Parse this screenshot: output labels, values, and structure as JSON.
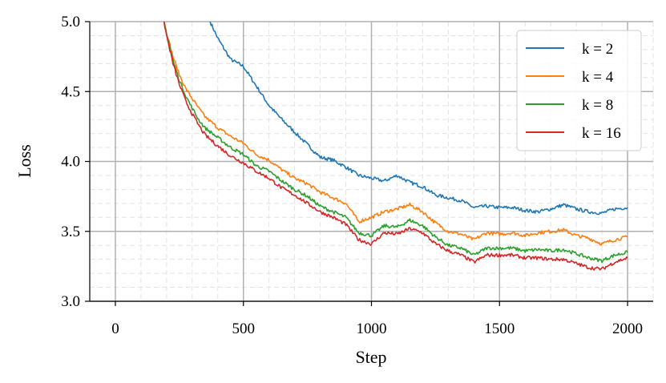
{
  "chart_data": {
    "type": "line",
    "title": "",
    "xlabel": "Step",
    "ylabel": "Loss",
    "xlim": [
      -100,
      2100
    ],
    "ylim": [
      3.0,
      5.0
    ],
    "xticks": [
      0,
      500,
      1000,
      1500,
      2000
    ],
    "yticks": [
      3.0,
      3.5,
      4.0,
      4.5,
      5.0
    ],
    "xtick_labels": [
      "0",
      "500",
      "1000",
      "1500",
      "2000"
    ],
    "ytick_labels": [
      "3.0",
      "3.5",
      "4.0",
      "4.5",
      "5.0"
    ],
    "grid": "major and minor",
    "legend_position": "top-right",
    "series": [
      {
        "name": "k = 2",
        "color": "#1f77b4",
        "x": [
          370,
          400,
          450,
          500,
          550,
          600,
          650,
          700,
          750,
          800,
          850,
          900,
          950,
          1000,
          1050,
          1100,
          1150,
          1200,
          1250,
          1300,
          1350,
          1400,
          1450,
          1500,
          1550,
          1600,
          1650,
          1700,
          1750,
          1800,
          1850,
          1900,
          1950,
          2000
        ],
        "y": [
          5.0,
          4.88,
          4.73,
          4.68,
          4.54,
          4.4,
          4.3,
          4.21,
          4.12,
          4.03,
          4.01,
          3.96,
          3.9,
          3.88,
          3.86,
          3.9,
          3.85,
          3.82,
          3.76,
          3.74,
          3.72,
          3.67,
          3.68,
          3.67,
          3.67,
          3.65,
          3.64,
          3.66,
          3.69,
          3.66,
          3.64,
          3.63,
          3.66,
          3.67
        ]
      },
      {
        "name": "k = 4",
        "color": "#ff7f0e",
        "x": [
          190,
          200,
          225,
          250,
          275,
          300,
          325,
          350,
          400,
          450,
          500,
          550,
          600,
          650,
          700,
          750,
          800,
          850,
          900,
          950,
          1000,
          1050,
          1100,
          1150,
          1200,
          1250,
          1300,
          1350,
          1400,
          1450,
          1500,
          1550,
          1600,
          1650,
          1700,
          1750,
          1800,
          1850,
          1900,
          1950,
          2000
        ],
        "y": [
          5.0,
          4.92,
          4.75,
          4.62,
          4.52,
          4.45,
          4.38,
          4.32,
          4.24,
          4.18,
          4.13,
          4.05,
          4.01,
          3.94,
          3.88,
          3.84,
          3.78,
          3.74,
          3.7,
          3.57,
          3.6,
          3.64,
          3.66,
          3.69,
          3.64,
          3.56,
          3.5,
          3.48,
          3.44,
          3.49,
          3.48,
          3.49,
          3.47,
          3.49,
          3.5,
          3.51,
          3.47,
          3.45,
          3.41,
          3.44,
          3.46
        ]
      },
      {
        "name": "k = 8",
        "color": "#2ca02c",
        "x": [
          190,
          200,
          225,
          250,
          275,
          300,
          325,
          350,
          400,
          450,
          500,
          550,
          600,
          650,
          700,
          750,
          800,
          850,
          900,
          950,
          1000,
          1050,
          1100,
          1150,
          1200,
          1250,
          1300,
          1350,
          1400,
          1450,
          1500,
          1550,
          1600,
          1650,
          1700,
          1750,
          1800,
          1850,
          1900,
          1950,
          2000
        ],
        "y": [
          5.0,
          4.92,
          4.72,
          4.58,
          4.47,
          4.38,
          4.3,
          4.24,
          4.17,
          4.1,
          4.05,
          3.97,
          3.93,
          3.86,
          3.8,
          3.75,
          3.68,
          3.64,
          3.6,
          3.49,
          3.47,
          3.54,
          3.53,
          3.58,
          3.54,
          3.46,
          3.4,
          3.38,
          3.33,
          3.38,
          3.38,
          3.38,
          3.36,
          3.37,
          3.36,
          3.37,
          3.34,
          3.31,
          3.29,
          3.33,
          3.35
        ]
      },
      {
        "name": "k = 16",
        "color": "#d62728",
        "x": [
          190,
          200,
          225,
          250,
          275,
          300,
          325,
          350,
          400,
          450,
          500,
          550,
          600,
          650,
          700,
          750,
          800,
          850,
          900,
          950,
          1000,
          1050,
          1100,
          1150,
          1200,
          1250,
          1300,
          1350,
          1400,
          1450,
          1500,
          1550,
          1600,
          1650,
          1700,
          1750,
          1800,
          1850,
          1900,
          1950,
          2000
        ],
        "y": [
          5.0,
          4.9,
          4.7,
          4.55,
          4.43,
          4.34,
          4.26,
          4.19,
          4.11,
          4.04,
          3.99,
          3.93,
          3.88,
          3.81,
          3.76,
          3.7,
          3.64,
          3.6,
          3.55,
          3.44,
          3.41,
          3.49,
          3.48,
          3.52,
          3.49,
          3.41,
          3.36,
          3.33,
          3.28,
          3.33,
          3.33,
          3.33,
          3.31,
          3.31,
          3.3,
          3.3,
          3.27,
          3.24,
          3.23,
          3.28,
          3.31
        ]
      }
    ]
  }
}
